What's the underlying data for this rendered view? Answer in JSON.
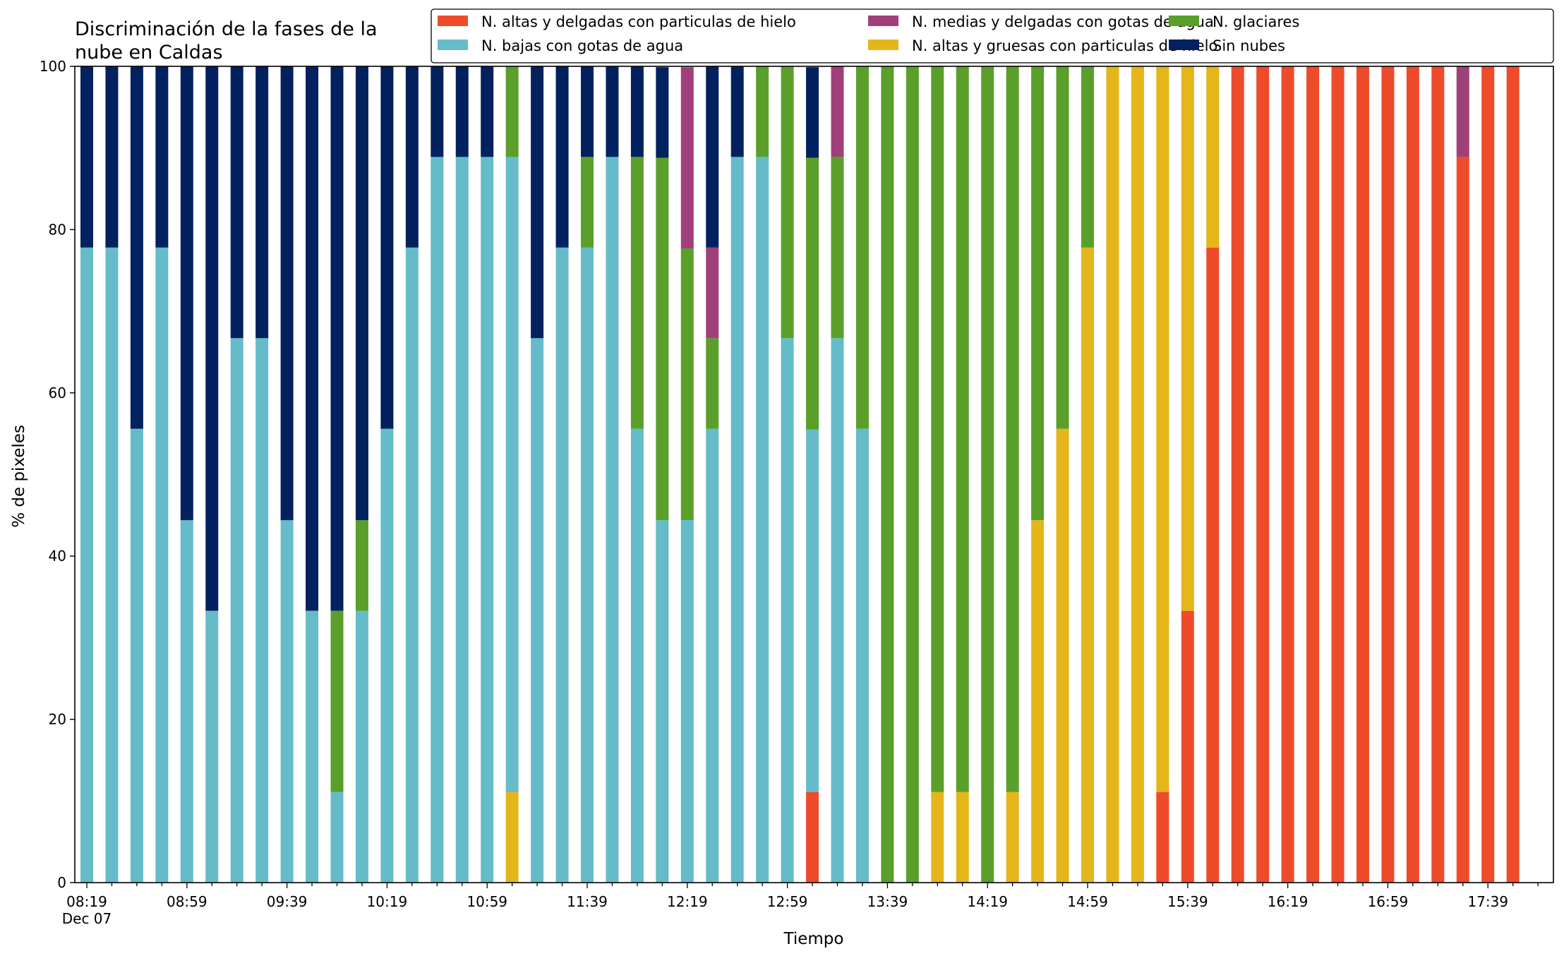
{
  "chart_data": {
    "type": "bar",
    "stacked": true,
    "title": "Discriminación de la fases de la nube en Caldas",
    "title_lines": [
      "Discriminación de la fases de la",
      "nube en Caldas"
    ],
    "xlabel": "Tiempo",
    "ylabel": "% de pixeles",
    "ylim": [
      0,
      100
    ],
    "yticks": [
      0,
      20,
      40,
      60,
      80,
      100
    ],
    "date_label": "Dec 07",
    "time_start": "08:19",
    "time_step_minutes": 10,
    "tick_every_n_slots": 4,
    "n_slots": 59,
    "x_ticklabels": [
      "08:19",
      "08:59",
      "09:39",
      "10:19",
      "10:59",
      "11:39",
      "12:19",
      "12:59",
      "13:39",
      "14:19",
      "14:59",
      "15:39",
      "16:19",
      "16:59",
      "17:39"
    ],
    "grid": false,
    "legend_position": "top-right",
    "legend_columns": 3,
    "series": [
      {
        "name": "N. altas y delgadas con particulas de hielo",
        "color": "#EE4B2B"
      },
      {
        "name": "N. altas y gruesas con particulas de hielo",
        "color": "#E4B61A"
      },
      {
        "name": "N. bajas con gotas de agua",
        "color": "#65BCC8"
      },
      {
        "name": "N. glaciares",
        "color": "#5B9F2B"
      },
      {
        "name": "N. medias y delgadas con gotas de agua",
        "color": "#A0407A"
      },
      {
        "name": "Sin nubes",
        "color": "#03215E"
      }
    ],
    "legend_order": [
      0,
      2,
      4,
      1,
      3,
      5
    ],
    "stack_order": [
      0,
      1,
      2,
      3,
      4,
      5
    ],
    "bars": [
      {
        "slot": 0,
        "values": [
          0,
          0,
          77.8,
          0,
          0,
          22.2
        ]
      },
      {
        "slot": 1,
        "values": [
          0,
          0,
          77.8,
          0,
          0,
          22.2
        ]
      },
      {
        "slot": 2,
        "values": [
          0,
          0,
          55.6,
          0,
          0,
          44.4
        ]
      },
      {
        "slot": 3,
        "values": [
          0,
          0,
          77.8,
          0,
          0,
          22.2
        ]
      },
      {
        "slot": 4,
        "values": [
          0,
          0,
          44.4,
          0,
          0,
          55.6
        ]
      },
      {
        "slot": 5,
        "values": [
          0,
          0,
          33.3,
          0,
          0,
          66.7
        ]
      },
      {
        "slot": 6,
        "values": [
          0,
          0,
          66.7,
          0,
          0,
          33.3
        ]
      },
      {
        "slot": 7,
        "values": [
          0,
          0,
          66.7,
          0,
          0,
          33.3
        ]
      },
      {
        "slot": 8,
        "values": [
          0,
          0,
          44.4,
          0,
          0,
          55.6
        ]
      },
      {
        "slot": 9,
        "values": [
          0,
          0,
          33.3,
          0,
          0,
          66.7
        ]
      },
      {
        "slot": 10,
        "values": [
          0,
          0,
          11.1,
          22.2,
          0,
          66.7
        ]
      },
      {
        "slot": 11,
        "values": [
          0,
          0,
          33.3,
          11.1,
          0,
          55.6
        ]
      },
      {
        "slot": 12,
        "values": [
          0,
          0,
          55.6,
          0,
          0,
          44.4
        ]
      },
      {
        "slot": 13,
        "values": [
          0,
          0,
          77.8,
          0,
          0,
          22.2
        ]
      },
      {
        "slot": 14,
        "values": [
          0,
          0,
          88.9,
          0,
          0,
          11.1
        ]
      },
      {
        "slot": 15,
        "values": [
          0,
          0,
          88.9,
          0,
          0,
          11.1
        ]
      },
      {
        "slot": 16,
        "values": [
          0,
          0,
          88.9,
          0,
          0,
          11.1
        ]
      },
      {
        "slot": 17,
        "values": [
          0,
          11.1,
          77.8,
          11.1,
          0,
          0
        ]
      },
      {
        "slot": 18,
        "values": [
          0,
          0,
          66.7,
          0,
          0,
          33.3
        ]
      },
      {
        "slot": 19,
        "values": [
          0,
          0,
          77.8,
          0,
          0,
          22.2
        ]
      },
      {
        "slot": 20,
        "values": [
          0,
          0,
          77.8,
          11.1,
          0,
          11.1
        ]
      },
      {
        "slot": 21,
        "values": [
          0,
          0,
          88.9,
          0,
          0,
          11.1
        ]
      },
      {
        "slot": 22,
        "values": [
          0,
          0,
          55.6,
          33.3,
          0,
          11.1
        ]
      },
      {
        "slot": 23,
        "values": [
          0,
          0,
          44.4,
          44.4,
          0,
          11.1
        ]
      },
      {
        "slot": 24,
        "values": [
          0,
          0,
          44.4,
          33.3,
          22.2,
          0
        ]
      },
      {
        "slot": 25,
        "values": [
          0,
          0,
          55.6,
          11.1,
          11.1,
          22.2
        ]
      },
      {
        "slot": 26,
        "values": [
          0,
          0,
          88.9,
          0,
          0,
          11.1
        ]
      },
      {
        "slot": 27,
        "values": [
          0,
          0,
          88.9,
          11.1,
          0,
          0
        ]
      },
      {
        "slot": 28,
        "values": [
          0,
          0,
          66.7,
          33.3,
          0,
          0
        ]
      },
      {
        "slot": 29,
        "values": [
          11.1,
          0,
          44.4,
          33.3,
          0,
          11.1
        ]
      },
      {
        "slot": 30,
        "values": [
          0,
          0,
          66.7,
          22.2,
          11.1,
          0
        ]
      },
      {
        "slot": 31,
        "values": [
          0,
          0,
          55.6,
          44.4,
          0,
          0
        ]
      },
      {
        "slot": 32,
        "values": [
          0,
          0,
          0,
          100,
          0,
          0
        ]
      },
      {
        "slot": 33,
        "values": [
          0,
          0,
          0,
          100,
          0,
          0
        ]
      },
      {
        "slot": 34,
        "values": [
          0,
          11.1,
          0,
          88.9,
          0,
          0
        ]
      },
      {
        "slot": 35,
        "values": [
          0,
          11.1,
          0,
          88.9,
          0,
          0
        ]
      },
      {
        "slot": 36,
        "values": [
          0,
          0,
          0,
          100,
          0,
          0
        ]
      },
      {
        "slot": 37,
        "values": [
          0,
          11.1,
          0,
          88.9,
          0,
          0
        ]
      },
      {
        "slot": 38,
        "values": [
          0,
          44.4,
          0,
          55.6,
          0,
          0
        ]
      },
      {
        "slot": 39,
        "values": [
          0,
          55.6,
          0,
          44.4,
          0,
          0
        ]
      },
      {
        "slot": 40,
        "values": [
          0,
          77.8,
          0,
          22.2,
          0,
          0
        ]
      },
      {
        "slot": 41,
        "values": [
          0,
          100,
          0,
          0,
          0,
          0
        ]
      },
      {
        "slot": 42,
        "values": [
          0,
          100,
          0,
          0,
          0,
          0
        ]
      },
      {
        "slot": 43,
        "values": [
          11.1,
          88.9,
          0,
          0,
          0,
          0
        ]
      },
      {
        "slot": 44,
        "values": [
          33.3,
          66.7,
          0,
          0,
          0,
          0
        ]
      },
      {
        "slot": 45,
        "values": [
          77.8,
          22.2,
          0,
          0,
          0,
          0
        ]
      },
      {
        "slot": 46,
        "values": [
          100,
          0,
          0,
          0,
          0,
          0
        ]
      },
      {
        "slot": 47,
        "values": [
          100,
          0,
          0,
          0,
          0,
          0
        ]
      },
      {
        "slot": 48,
        "values": [
          100,
          0,
          0,
          0,
          0,
          0
        ]
      },
      {
        "slot": 49,
        "values": [
          100,
          0,
          0,
          0,
          0,
          0
        ]
      },
      {
        "slot": 50,
        "values": [
          100,
          0,
          0,
          0,
          0,
          0
        ]
      },
      {
        "slot": 51,
        "values": [
          100,
          0,
          0,
          0,
          0,
          0
        ]
      },
      {
        "slot": 52,
        "values": [
          100,
          0,
          0,
          0,
          0,
          0
        ]
      },
      {
        "slot": 53,
        "values": [
          100,
          0,
          0,
          0,
          0,
          0
        ]
      },
      {
        "slot": 54,
        "values": [
          100,
          0,
          0,
          0,
          0,
          0
        ]
      },
      {
        "slot": 55,
        "values": [
          88.9,
          0,
          0,
          0,
          11.1,
          0
        ]
      },
      {
        "slot": 56,
        "values": [
          100,
          0,
          0,
          0,
          0,
          0
        ]
      },
      {
        "slot": 57,
        "values": [
          100,
          0,
          0,
          0,
          0,
          0
        ]
      }
    ]
  }
}
